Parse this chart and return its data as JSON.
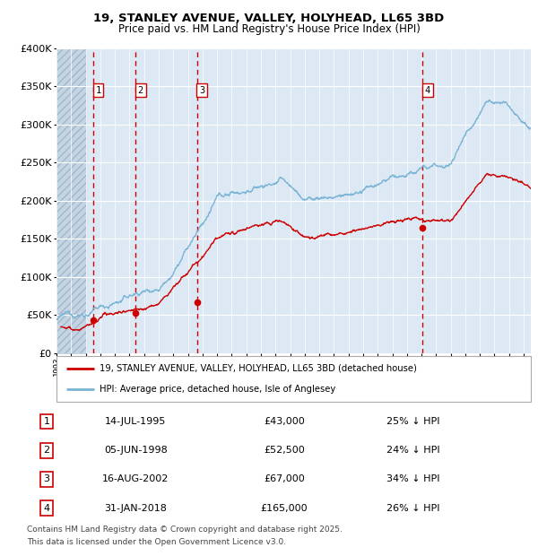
{
  "title1": "19, STANLEY AVENUE, VALLEY, HOLYHEAD, LL65 3BD",
  "title2": "Price paid vs. HM Land Registry's House Price Index (HPI)",
  "legend_label_red": "19, STANLEY AVENUE, VALLEY, HOLYHEAD, LL65 3BD (detached house)",
  "legend_label_blue": "HPI: Average price, detached house, Isle of Anglesey",
  "footer1": "Contains HM Land Registry data © Crown copyright and database right 2025.",
  "footer2": "This data is licensed under the Open Government Licence v3.0.",
  "sales": [
    {
      "num": 1,
      "date_str": "14-JUL-1995",
      "price": 43000,
      "pct": "25% ↓ HPI",
      "year": 1995.53
    },
    {
      "num": 2,
      "date_str": "05-JUN-1998",
      "price": 52500,
      "pct": "24% ↓ HPI",
      "year": 1998.42
    },
    {
      "num": 3,
      "date_str": "16-AUG-2002",
      "price": 67000,
      "pct": "34% ↓ HPI",
      "year": 2002.62
    },
    {
      "num": 4,
      "date_str": "31-JAN-2018",
      "price": 165000,
      "pct": "26% ↓ HPI",
      "year": 2018.08
    }
  ],
  "hpi_color": "#7ab3d4",
  "price_color": "#cc0000",
  "vline_color": "#cc0000",
  "bg_color": "#dce9f5",
  "hatch_color": "#c4d4e2",
  "grid_color": "#ffffff",
  "ylim": [
    0,
    400000
  ],
  "yticks": [
    0,
    50000,
    100000,
    150000,
    200000,
    250000,
    300000,
    350000,
    400000
  ],
  "xmin": 1993.0,
  "xmax": 2025.5,
  "hatch_end": 1995.0
}
